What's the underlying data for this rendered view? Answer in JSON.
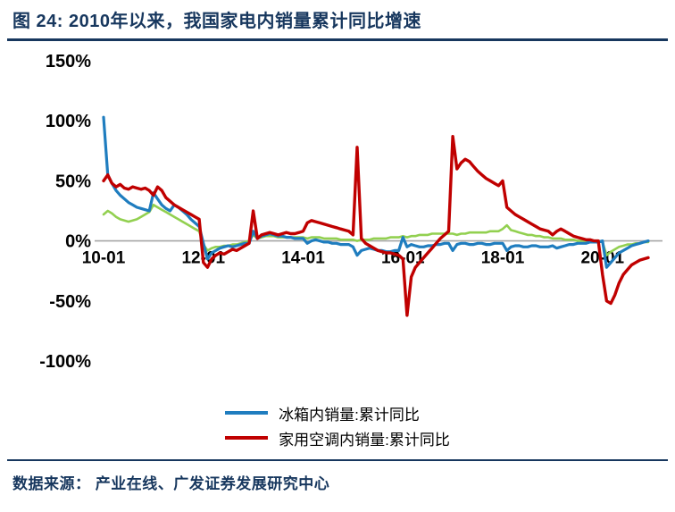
{
  "title": {
    "text": "图 24:  2010年以来，我国家电内销量累计同比增速"
  },
  "footer": {
    "source": "数据来源： 产业在线、广发证券发展研究中心"
  },
  "colors": {
    "title_navy": "#17375E",
    "blue_line": "#1F7DBF",
    "red_line": "#C00000",
    "green_line": "#92D050",
    "axis_gray": "#A6A6A6",
    "tick_text": "#000000"
  },
  "chart_data": {
    "type": "line",
    "title": "2010年以来，我国家电内销量累计同比增速",
    "ylabel": "",
    "xlabel": "",
    "ylim": [
      -100,
      150
    ],
    "grid": false,
    "legend_position": "bottom",
    "x_frequency": "monthly",
    "x_range": [
      "10-01",
      "20-12"
    ],
    "y_ticks": [
      {
        "label": "150%",
        "value": 150
      },
      {
        "label": "100%",
        "value": 100
      },
      {
        "label": "50%",
        "value": 50
      },
      {
        "label": "0%",
        "value": 0
      },
      {
        "label": "-50%",
        "value": -50
      },
      {
        "label": "-100%",
        "value": -100
      }
    ],
    "x_ticks": [
      {
        "label": "10-01",
        "index": 0
      },
      {
        "label": "12-01",
        "index": 24
      },
      {
        "label": "14-01",
        "index": 48
      },
      {
        "label": "16-01",
        "index": 72
      },
      {
        "label": "18-01",
        "index": 96
      },
      {
        "label": "20-01",
        "index": 120
      }
    ],
    "series": [
      {
        "key": "fridge",
        "name": "冰箱内销量:累计同比",
        "color": "#1F7DBF",
        "in_legend": true,
        "values": [
          103,
          55,
          48,
          42,
          38,
          35,
          32,
          30,
          28,
          27,
          26,
          25,
          40,
          35,
          30,
          27,
          25,
          30,
          28,
          25,
          22,
          18,
          15,
          12,
          -2,
          -15,
          -10,
          -8,
          -6,
          -5,
          -4,
          -5,
          -4,
          -3,
          -2,
          -2,
          8,
          2,
          4,
          5,
          6,
          5,
          4,
          4,
          3,
          3,
          2,
          2,
          2,
          -2,
          0,
          1,
          0,
          -1,
          -1,
          -2,
          -2,
          -3,
          -3,
          -3,
          -5,
          -12,
          -8,
          -7,
          -6,
          -7,
          -8,
          -8,
          -9,
          -9,
          -8,
          -8,
          3,
          -5,
          -3,
          -4,
          -5,
          -5,
          -4,
          -4,
          -3,
          -3,
          -2,
          -2,
          -8,
          -3,
          -2,
          -2,
          -3,
          -3,
          -2,
          -2,
          -3,
          -3,
          -2,
          -2,
          -2,
          -8,
          -5,
          -4,
          -4,
          -5,
          -5,
          -4,
          -4,
          -5,
          -5,
          -5,
          -4,
          -6,
          -5,
          -4,
          -3,
          -3,
          -2,
          -2,
          -2,
          -1,
          -1,
          -1,
          0,
          -22,
          -18,
          -14,
          -10,
          -8,
          -6,
          -4,
          -3,
          -2,
          -1,
          0
        ]
      },
      {
        "key": "ac",
        "name": "家用空调内销量:累计同比",
        "color": "#C00000",
        "in_legend": true,
        "values": [
          50,
          55,
          48,
          45,
          47,
          44,
          43,
          45,
          44,
          43,
          44,
          42,
          38,
          45,
          42,
          36,
          33,
          30,
          28,
          26,
          24,
          22,
          20,
          18,
          -18,
          -22,
          -15,
          -12,
          -10,
          -11,
          -9,
          -7,
          -8,
          -6,
          -4,
          -2,
          25,
          2,
          5,
          6,
          7,
          6,
          5,
          6,
          7,
          6,
          6,
          7,
          8,
          15,
          17,
          16,
          15,
          14,
          13,
          12,
          11,
          10,
          9,
          8,
          5,
          78,
          2,
          -2,
          -4,
          -6,
          -8,
          -9,
          -10,
          -10,
          -11,
          -12,
          -15,
          -62,
          -30,
          -22,
          -18,
          -14,
          -10,
          -6,
          -2,
          2,
          5,
          8,
          87,
          60,
          65,
          68,
          66,
          62,
          58,
          55,
          52,
          50,
          48,
          46,
          50,
          28,
          25,
          22,
          20,
          18,
          16,
          14,
          12,
          10,
          9,
          8,
          5,
          8,
          10,
          8,
          6,
          4,
          3,
          2,
          1,
          1,
          0,
          0,
          -28,
          -50,
          -52,
          -45,
          -35,
          -28,
          -24,
          -20,
          -18,
          -16,
          -15,
          -14
        ]
      },
      {
        "key": "unlabeled-green",
        "name": "",
        "color": "#92D050",
        "in_legend": false,
        "values": [
          22,
          25,
          23,
          20,
          18,
          17,
          16,
          17,
          18,
          20,
          22,
          24,
          30,
          28,
          26,
          24,
          22,
          20,
          18,
          16,
          14,
          12,
          10,
          8,
          -3,
          -8,
          -6,
          -5,
          -5,
          -4,
          -4,
          -3,
          -3,
          -2,
          -1,
          0,
          5,
          2,
          3,
          4,
          4,
          4,
          3,
          3,
          3,
          3,
          3,
          3,
          3,
          2,
          3,
          3,
          3,
          2,
          2,
          2,
          2,
          1,
          1,
          1,
          1,
          0,
          1,
          1,
          1,
          2,
          2,
          2,
          2,
          3,
          3,
          3,
          4,
          3,
          4,
          4,
          5,
          5,
          5,
          6,
          6,
          6,
          6,
          6,
          6,
          5,
          6,
          6,
          7,
          7,
          7,
          7,
          7,
          8,
          8,
          8,
          10,
          13,
          9,
          8,
          7,
          6,
          5,
          5,
          4,
          4,
          3,
          3,
          2,
          2,
          2,
          1,
          1,
          1,
          0,
          0,
          0,
          0,
          0,
          0,
          -1,
          -12,
          -9,
          -7,
          -5,
          -4,
          -3,
          -3,
          -2,
          -2,
          -1,
          -1
        ]
      }
    ]
  }
}
